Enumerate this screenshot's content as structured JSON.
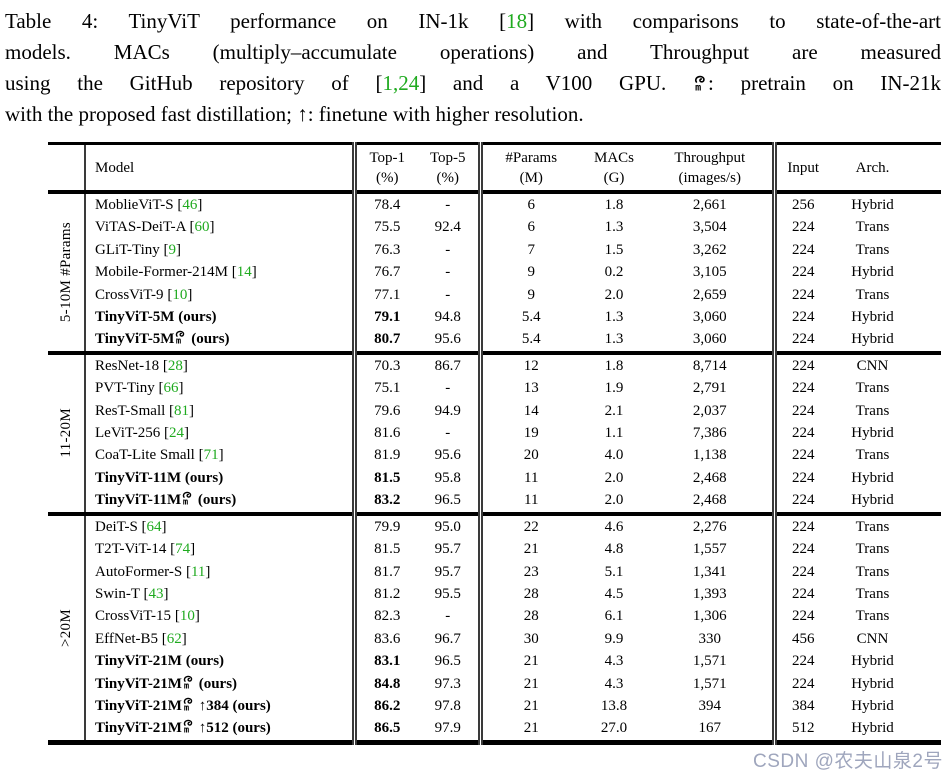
{
  "colors": {
    "citation_green": "#1faa1f",
    "watermark": "#9fa6bd",
    "rule_black": "#000000",
    "vline_gray": "#3a3a3a"
  },
  "caption": {
    "line1_pre": "Table 4: TinyViT performance on IN-1k [",
    "line1_cite": "18",
    "line1_post": "] with comparisons to state-of-the-art",
    "line2": "models. MACs (multiply–accumulate operations) and Throughput are measured",
    "line3_pre": "using the GitHub repository of [",
    "line3_cite": "1,24",
    "line3_mid": "] and a V100 GPU. ",
    "line3_icon": "factory-icon",
    "line3_post": ": pretrain on IN-21k",
    "line4": "with the proposed fast distillation; ↑: finetune with higher resolution."
  },
  "header": {
    "model": "Model",
    "top1_l1": "Top-1",
    "top1_l2": "(%)",
    "top5_l1": "Top-5",
    "top5_l2": "(%)",
    "params_l1": "#Params",
    "params_l2": "(M)",
    "macs_l1": "MACs",
    "macs_l2": "(G)",
    "throughput_l1": "Throughput",
    "throughput_l2": "(images/s)",
    "input": "Input",
    "arch": "Arch."
  },
  "table": {
    "groups": [
      {
        "label": "5-10M #Params",
        "rows": [
          {
            "name": "MoblieViT-S",
            "cite": "46",
            "icon": false,
            "suffix": "",
            "bold": false,
            "top1": "78.4",
            "top5": "-",
            "params": "6",
            "macs": "1.8",
            "throughput": "2,661",
            "input": "256",
            "arch": "Hybrid"
          },
          {
            "name": "ViTAS-DeiT-A",
            "cite": "60",
            "icon": false,
            "suffix": "",
            "bold": false,
            "top1": "75.5",
            "top5": "92.4",
            "params": "6",
            "macs": "1.3",
            "throughput": "3,504",
            "input": "224",
            "arch": "Trans"
          },
          {
            "name": "GLiT-Tiny",
            "cite": "9",
            "icon": false,
            "suffix": "",
            "bold": false,
            "top1": "76.3",
            "top5": "-",
            "params": "7",
            "macs": "1.5",
            "throughput": "3,262",
            "input": "224",
            "arch": "Trans"
          },
          {
            "name": "Mobile-Former-214M",
            "cite": "14",
            "icon": false,
            "suffix": "",
            "bold": false,
            "top1": "76.7",
            "top5": "-",
            "params": "9",
            "macs": "0.2",
            "throughput": "3,105",
            "input": "224",
            "arch": "Hybrid"
          },
          {
            "name": "CrossViT-9",
            "cite": "10",
            "icon": false,
            "suffix": "",
            "bold": false,
            "top1": "77.1",
            "top5": "-",
            "params": "9",
            "macs": "2.0",
            "throughput": "2,659",
            "input": "224",
            "arch": "Trans"
          },
          {
            "name": "TinyViT-5M",
            "cite": null,
            "icon": false,
            "suffix": " (ours)",
            "bold": true,
            "top1": "79.1",
            "top5": "94.8",
            "params": "5.4",
            "macs": "1.3",
            "throughput": "3,060",
            "input": "224",
            "arch": "Hybrid"
          },
          {
            "name": "TinyViT-5M",
            "cite": null,
            "icon": true,
            "suffix": " (ours)",
            "bold": true,
            "top1": "80.7",
            "top5": "95.6",
            "params": "5.4",
            "macs": "1.3",
            "throughput": "3,060",
            "input": "224",
            "arch": "Hybrid"
          }
        ]
      },
      {
        "label": "11-20M",
        "rows": [
          {
            "name": "ResNet-18",
            "cite": "28",
            "icon": false,
            "suffix": "",
            "bold": false,
            "top1": "70.3",
            "top5": "86.7",
            "params": "12",
            "macs": "1.8",
            "throughput": "8,714",
            "input": "224",
            "arch": "CNN"
          },
          {
            "name": "PVT-Tiny",
            "cite": "66",
            "icon": false,
            "suffix": "",
            "bold": false,
            "top1": "75.1",
            "top5": "-",
            "params": "13",
            "macs": "1.9",
            "throughput": "2,791",
            "input": "224",
            "arch": "Trans"
          },
          {
            "name": "ResT-Small",
            "cite": "81",
            "icon": false,
            "suffix": "",
            "bold": false,
            "top1": "79.6",
            "top5": "94.9",
            "params": "14",
            "macs": "2.1",
            "throughput": "2,037",
            "input": "224",
            "arch": "Trans"
          },
          {
            "name": "LeViT-256",
            "cite": "24",
            "icon": false,
            "suffix": "",
            "bold": false,
            "top1": "81.6",
            "top5": "-",
            "params": "19",
            "macs": "1.1",
            "throughput": "7,386",
            "input": "224",
            "arch": "Hybrid"
          },
          {
            "name": "CoaT-Lite Small",
            "cite": "71",
            "icon": false,
            "suffix": "",
            "bold": false,
            "top1": "81.9",
            "top5": "95.6",
            "params": "20",
            "macs": "4.0",
            "throughput": "1,138",
            "input": "224",
            "arch": "Trans"
          },
          {
            "name": "TinyViT-11M",
            "cite": null,
            "icon": false,
            "suffix": " (ours)",
            "bold": true,
            "top1": "81.5",
            "top5": "95.8",
            "params": "11",
            "macs": "2.0",
            "throughput": "2,468",
            "input": "224",
            "arch": "Hybrid"
          },
          {
            "name": "TinyViT-11M",
            "cite": null,
            "icon": true,
            "suffix": " (ours)",
            "bold": true,
            "top1": "83.2",
            "top5": "96.5",
            "params": "11",
            "macs": "2.0",
            "throughput": "2,468",
            "input": "224",
            "arch": "Hybrid"
          }
        ]
      },
      {
        "label": ">20M",
        "rows": [
          {
            "name": "DeiT-S",
            "cite": "64",
            "icon": false,
            "suffix": "",
            "bold": false,
            "top1": "79.9",
            "top5": "95.0",
            "params": "22",
            "macs": "4.6",
            "throughput": "2,276",
            "input": "224",
            "arch": "Trans"
          },
          {
            "name": "T2T-ViT-14",
            "cite": "74",
            "icon": false,
            "suffix": "",
            "bold": false,
            "top1": "81.5",
            "top5": "95.7",
            "params": "21",
            "macs": "4.8",
            "throughput": "1,557",
            "input": "224",
            "arch": "Trans"
          },
          {
            "name": "AutoFormer-S",
            "cite": "11",
            "icon": false,
            "suffix": "",
            "bold": false,
            "top1": "81.7",
            "top5": "95.7",
            "params": "23",
            "macs": "5.1",
            "throughput": "1,341",
            "input": "224",
            "arch": "Trans"
          },
          {
            "name": "Swin-T",
            "cite": "43",
            "icon": false,
            "suffix": "",
            "bold": false,
            "top1": "81.2",
            "top5": "95.5",
            "params": "28",
            "macs": "4.5",
            "throughput": "1,393",
            "input": "224",
            "arch": "Trans"
          },
          {
            "name": "CrossViT-15",
            "cite": "10",
            "icon": false,
            "suffix": "",
            "bold": false,
            "top1": "82.3",
            "top5": "-",
            "params": "28",
            "macs": "6.1",
            "throughput": "1,306",
            "input": "224",
            "arch": "Trans"
          },
          {
            "name": "EffNet-B5",
            "cite": "62",
            "icon": false,
            "suffix": "",
            "bold": false,
            "top1": "83.6",
            "top5": "96.7",
            "params": "30",
            "macs": "9.9",
            "throughput": "330",
            "input": "456",
            "arch": "CNN"
          },
          {
            "name": "TinyViT-21M",
            "cite": null,
            "icon": false,
            "suffix": " (ours)",
            "bold": true,
            "top1": "83.1",
            "top5": "96.5",
            "params": "21",
            "macs": "4.3",
            "throughput": "1,571",
            "input": "224",
            "arch": "Hybrid"
          },
          {
            "name": "TinyViT-21M",
            "cite": null,
            "icon": true,
            "suffix": " (ours)",
            "bold": true,
            "top1": "84.8",
            "top5": "97.3",
            "params": "21",
            "macs": "4.3",
            "throughput": "1,571",
            "input": "224",
            "arch": "Hybrid"
          },
          {
            "name": "TinyViT-21M",
            "cite": null,
            "icon": true,
            "suffix": " ↑384 (ours)",
            "bold": true,
            "top1": "86.2",
            "top5": "97.8",
            "params": "21",
            "macs": "13.8",
            "throughput": "394",
            "input": "384",
            "arch": "Hybrid"
          },
          {
            "name": "TinyViT-21M",
            "cite": null,
            "icon": true,
            "suffix": " ↑512 (ours)",
            "bold": true,
            "top1": "86.5",
            "top5": "97.9",
            "params": "21",
            "macs": "27.0",
            "throughput": "167",
            "input": "512",
            "arch": "Hybrid"
          }
        ]
      }
    ]
  },
  "watermark": {
    "text": "CSDN @农夫山泉2号"
  }
}
